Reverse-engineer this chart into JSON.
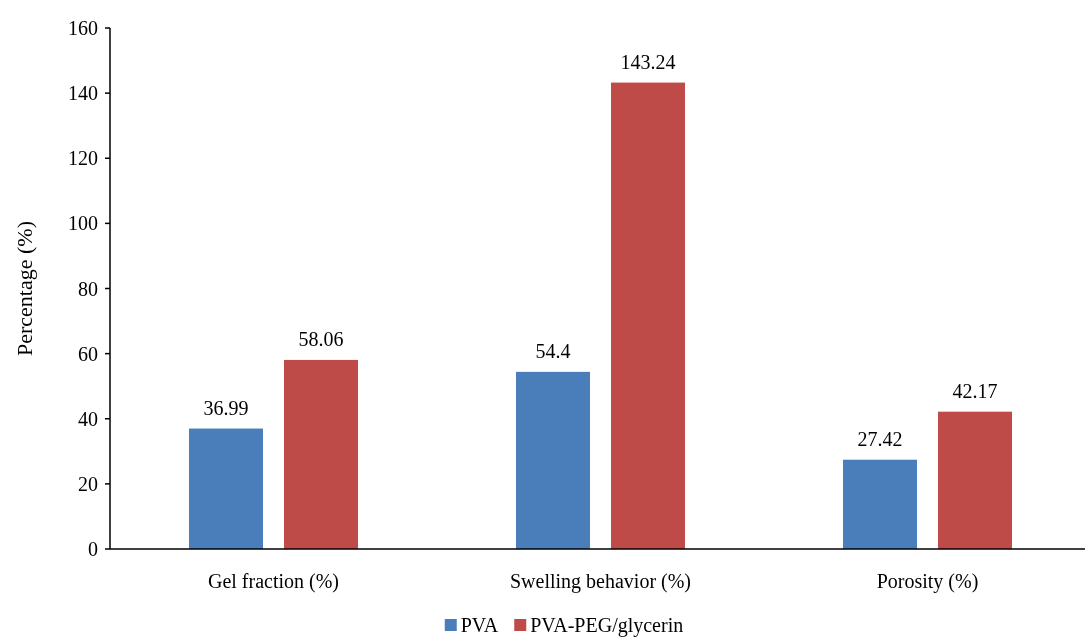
{
  "chart_data": {
    "type": "bar",
    "ylabel": "Percentage (%)",
    "categories": [
      "Gel fraction (%)",
      "Swelling behavior (%)",
      "Porosity (%)"
    ],
    "series": [
      {
        "name": "PVA",
        "color": "#4a7ebb",
        "values": [
          36.99,
          54.4,
          27.42
        ]
      },
      {
        "name": "PVA-PEG/glycerin",
        "color": "#be4b48",
        "values": [
          58.06,
          143.24,
          42.17
        ]
      }
    ],
    "ylim": [
      0,
      160
    ],
    "yticks": [
      0,
      20,
      40,
      60,
      80,
      100,
      120,
      140,
      160
    ],
    "data_labels": true,
    "legend": "bottom",
    "grid": false
  }
}
